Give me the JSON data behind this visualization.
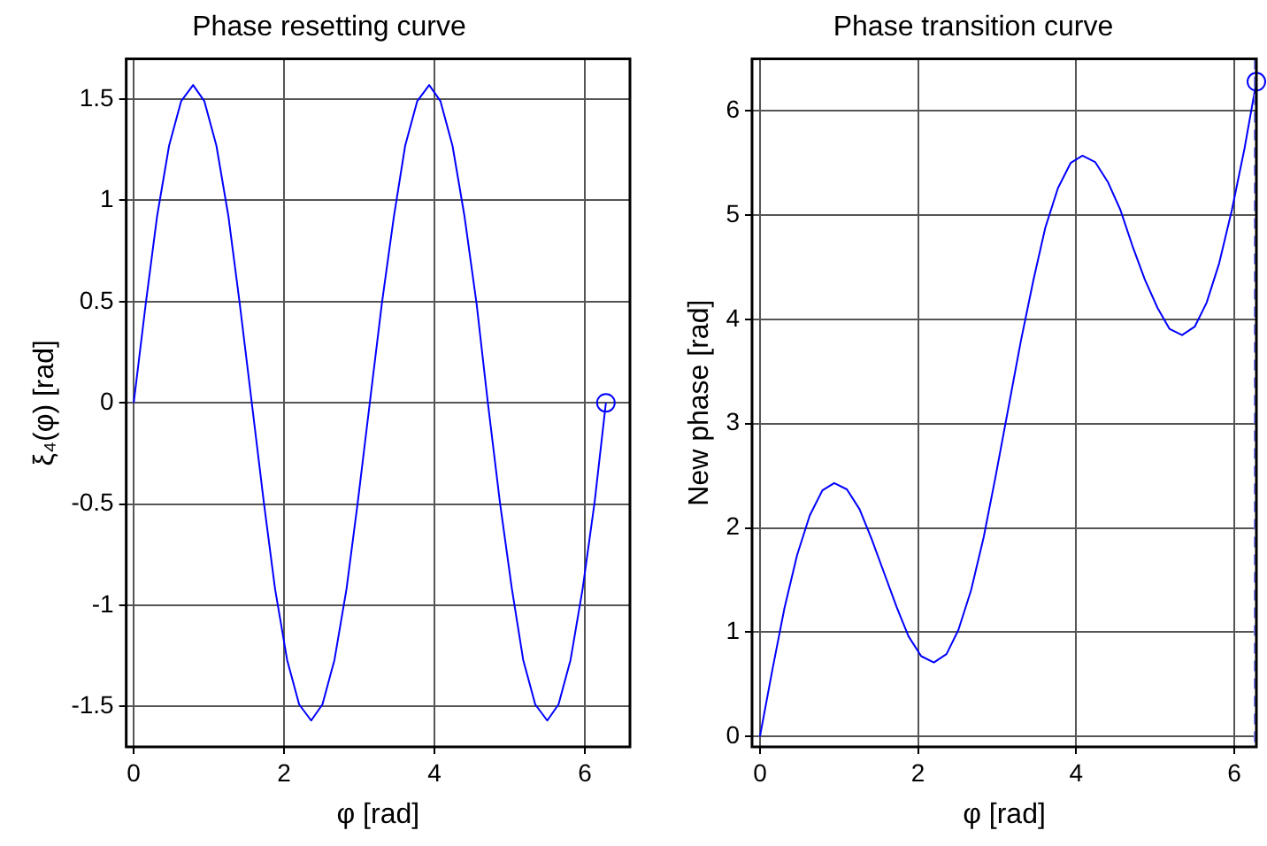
{
  "chart_data": [
    {
      "type": "line",
      "title": "Phase resetting curve",
      "xlabel": "φ [rad]",
      "ylabel": "ξ₄(φ) [rad]",
      "xlim": [
        -0.1,
        6.6
      ],
      "xticks": [
        0,
        2,
        4,
        6
      ],
      "ylim": [
        -1.7,
        1.7
      ],
      "yticks": [
        -1.5,
        -1,
        -0.5,
        0,
        0.5,
        1,
        1.5
      ],
      "grid": true,
      "marker": "none",
      "line_style": "solid",
      "x": [
        0,
        0.16,
        0.31,
        0.47,
        0.63,
        0.79,
        0.94,
        1.1,
        1.26,
        1.41,
        1.57,
        1.73,
        1.88,
        2.04,
        2.2,
        2.36,
        2.51,
        2.67,
        2.83,
        2.98,
        3.14,
        3.3,
        3.46,
        3.61,
        3.77,
        3.93,
        4.08,
        4.24,
        4.4,
        4.56,
        4.71,
        4.87,
        5.03,
        5.18,
        5.34,
        5.5,
        5.65,
        5.81,
        5.97,
        6.13,
        6.28
      ],
      "series": [
        {
          "color": "#0000ff",
          "values": [
            0,
            0.49,
            0.92,
            1.27,
            1.49,
            1.57,
            1.49,
            1.27,
            0.92,
            0.49,
            0,
            -0.49,
            -0.92,
            -1.27,
            -1.49,
            -1.57,
            -1.49,
            -1.27,
            -0.92,
            -0.49,
            0,
            0.49,
            0.92,
            1.27,
            1.49,
            1.57,
            1.49,
            1.27,
            0.92,
            0.49,
            0,
            -0.49,
            -0.92,
            -1.27,
            -1.49,
            -1.57,
            -1.49,
            -1.27,
            -0.92,
            -0.49,
            0
          ]
        },
        {
          "type": "scatter",
          "marker": "circle",
          "color": "#0000ff",
          "x": [
            6.28
          ],
          "values": [
            0
          ]
        }
      ]
    },
    {
      "type": "line",
      "title": "Phase transition curve",
      "xlabel": "φ [rad]",
      "ylabel": "New phase [rad]",
      "xlim": [
        -0.1,
        6.28
      ],
      "xticks": [
        0,
        2,
        4,
        6
      ],
      "ylim": [
        -0.1,
        6.5
      ],
      "yticks": [
        0,
        1,
        2,
        3,
        4,
        5,
        6
      ],
      "grid": true,
      "marker": "none",
      "line_style": "solid",
      "x": [
        0,
        0.16,
        0.31,
        0.47,
        0.63,
        0.79,
        0.94,
        1.1,
        1.26,
        1.41,
        1.57,
        1.73,
        1.88,
        2.04,
        2.2,
        2.36,
        2.51,
        2.67,
        2.83,
        2.98,
        3.14,
        3.3,
        3.46,
        3.61,
        3.77,
        3.93,
        4.08,
        4.24,
        4.4,
        4.56,
        4.71,
        4.87,
        5.03,
        5.18,
        5.34,
        5.5,
        5.65,
        5.81,
        5.97,
        6.13,
        6.28
      ],
      "ref_lines": [
        {
          "axis": "x",
          "value": 6.28,
          "color": "#8080ff",
          "line_style": "dashed"
        }
      ],
      "series": [
        {
          "color": "#0000ff",
          "values": [
            0,
            0.65,
            1.23,
            1.74,
            2.12,
            2.36,
            2.43,
            2.37,
            2.18,
            1.9,
            1.57,
            1.24,
            0.96,
            0.77,
            0.71,
            0.79,
            1.02,
            1.4,
            1.91,
            2.49,
            3.14,
            3.79,
            4.38,
            4.88,
            5.26,
            5.5,
            5.57,
            5.51,
            5.32,
            5.05,
            4.71,
            4.38,
            4.11,
            3.91,
            3.85,
            3.93,
            4.16,
            4.54,
            5.05,
            5.64,
            6.28
          ]
        },
        {
          "type": "scatter",
          "marker": "circle",
          "color": "#0000ff",
          "x": [
            6.28
          ],
          "values": [
            6.28
          ]
        }
      ]
    }
  ]
}
